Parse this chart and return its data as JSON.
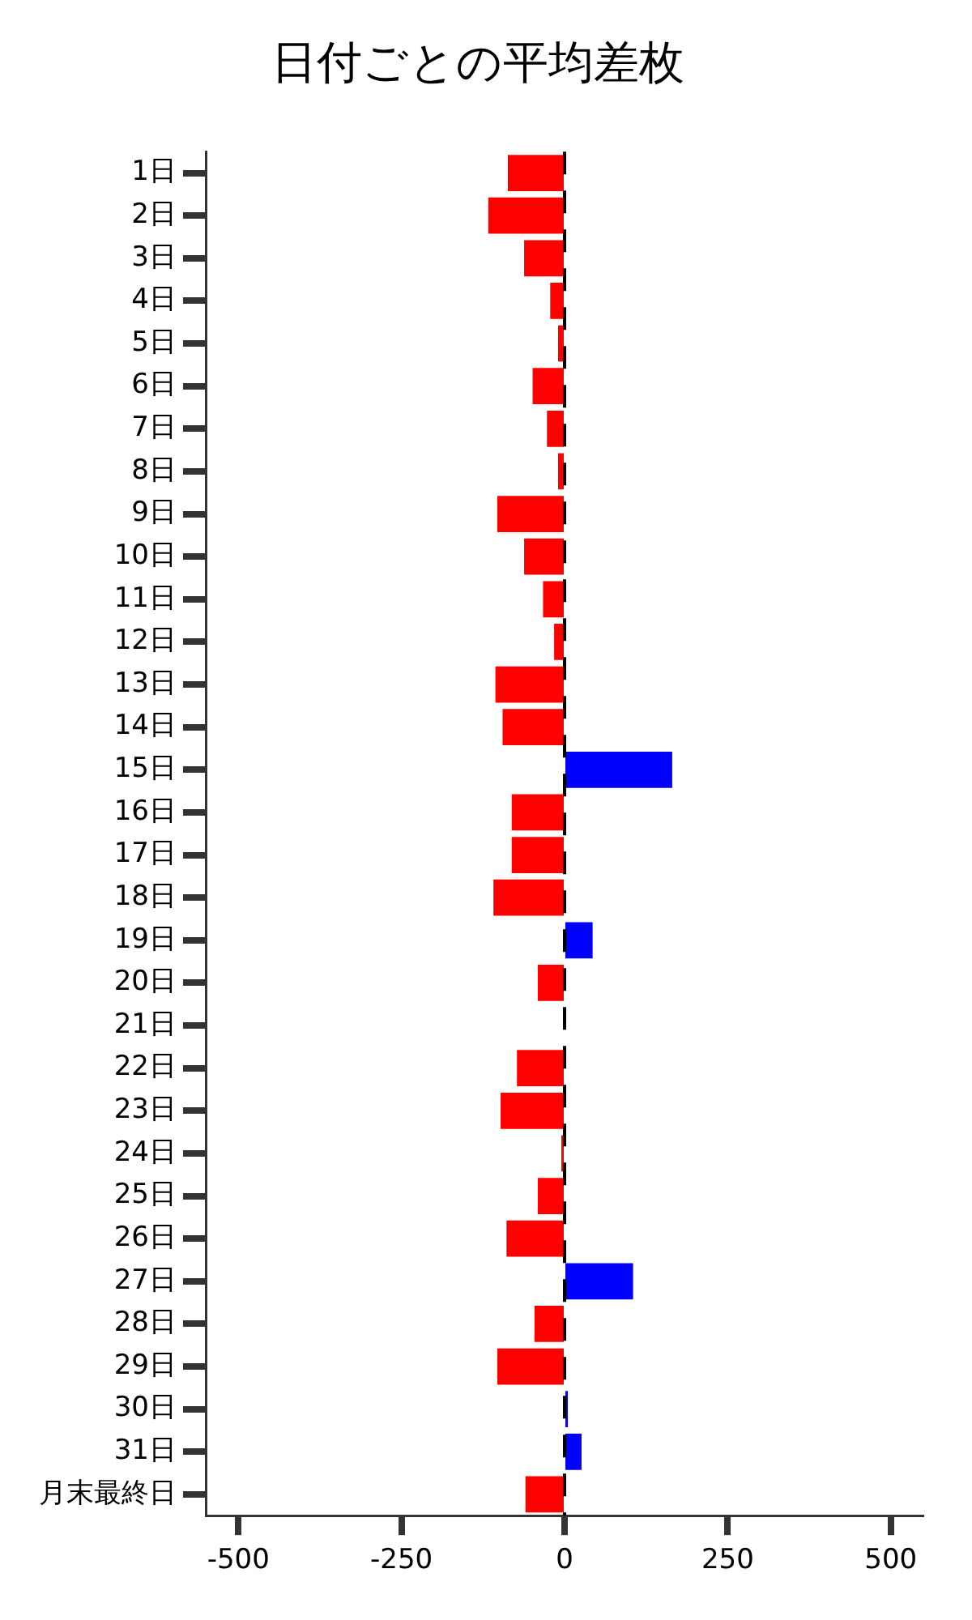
{
  "chart_data": {
    "type": "bar",
    "orientation": "horizontal",
    "title": "日付ごとの平均差枚",
    "categories": [
      "1日",
      "2日",
      "3日",
      "4日",
      "5日",
      "6日",
      "7日",
      "8日",
      "9日",
      "10日",
      "11日",
      "12日",
      "13日",
      "14日",
      "15日",
      "16日",
      "17日",
      "18日",
      "19日",
      "20日",
      "21日",
      "22日",
      "23日",
      "24日",
      "25日",
      "26日",
      "27日",
      "28日",
      "29日",
      "30日",
      "31日",
      "月末最終日"
    ],
    "values": [
      -87,
      -117,
      -62,
      -22,
      -10,
      -49,
      -27,
      -10,
      -103,
      -62,
      -33,
      -16,
      -106,
      -95,
      165,
      -81,
      -81,
      -109,
      43,
      -41,
      0,
      -73,
      -98,
      -5,
      -41,
      -89,
      105,
      -46,
      -103,
      5,
      26,
      -60
    ],
    "colors": [
      "#ff0000",
      "#ff0000",
      "#ff0000",
      "#ff0000",
      "#ff0000",
      "#ff0000",
      "#ff0000",
      "#ff0000",
      "#ff0000",
      "#ff0000",
      "#ff0000",
      "#ff0000",
      "#ff0000",
      "#ff0000",
      "#0000ff",
      "#ff0000",
      "#ff0000",
      "#ff0000",
      "#0000ff",
      "#ff0000",
      "#ff0000",
      "#ff0000",
      "#ff0000",
      "#ff0000",
      "#ff0000",
      "#ff0000",
      "#0000ff",
      "#ff0000",
      "#ff0000",
      "#0000ff",
      "#0000ff",
      "#ff0000"
    ],
    "xlim": [
      -550,
      550
    ],
    "xticks": [
      -500,
      -250,
      0,
      250,
      500
    ],
    "ref_lines": [
      {
        "axis": "x",
        "value": 0,
        "color": "#000000",
        "line_style": "dashed"
      }
    ],
    "grid": false,
    "legend": false
  }
}
